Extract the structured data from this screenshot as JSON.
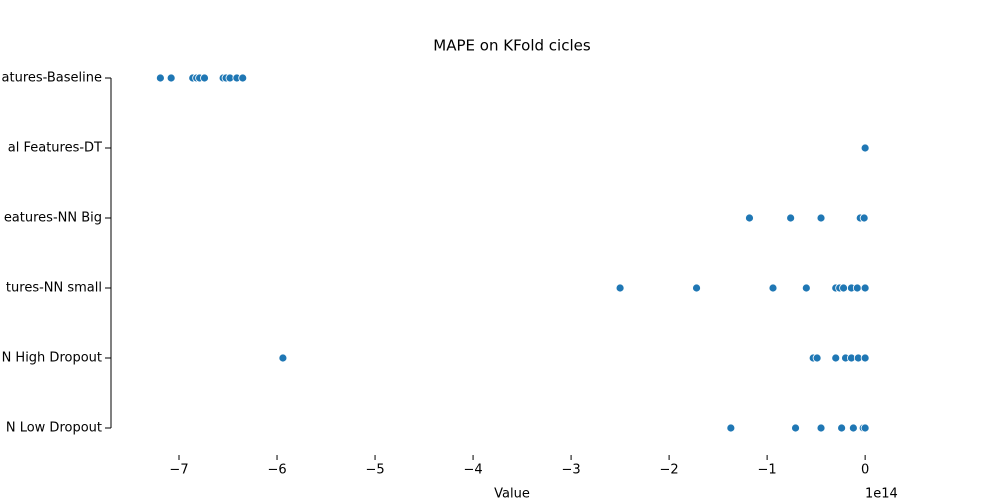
{
  "chart_data": {
    "type": "strip",
    "title": "MAPE on KFold cicles",
    "x_label": "Value",
    "x_offset_label": "1e14",
    "categories": [
      "atures-Baseline",
      "al Features-DT",
      "eatures-NN Big",
      "tures-NN small",
      "N High Dropout",
      "N Low Dropout"
    ],
    "values": [
      [
        -7.19,
        -7.08,
        -6.86,
        -6.82,
        -6.79,
        -6.74,
        -6.55,
        -6.52,
        -6.48,
        -6.41,
        -6.35
      ],
      [
        0
      ],
      [
        -1.18,
        -0.76,
        -0.45,
        -0.05,
        -0.01
      ],
      [
        -2.5,
        -1.72,
        -0.94,
        -0.6,
        -0.3,
        -0.26,
        -0.22,
        -0.14,
        -0.08,
        0
      ],
      [
        -5.94,
        -0.53,
        -0.49,
        -0.3,
        -0.2,
        -0.14,
        -0.07,
        0
      ],
      [
        -1.37,
        -0.71,
        -0.45,
        -0.24,
        -0.12,
        -0.02,
        0
      ]
    ],
    "color": "#1f77b4",
    "xlim": [
      -7.5,
      0.07
    ],
    "xticks": [
      {
        "value": -7,
        "label": "−7"
      },
      {
        "value": -6,
        "label": "−6"
      },
      {
        "value": -5,
        "label": "−5"
      },
      {
        "value": -4,
        "label": "−4"
      },
      {
        "value": -3,
        "label": "−3"
      },
      {
        "value": -2,
        "label": "−2"
      },
      {
        "value": -1,
        "label": "−1"
      },
      0
    ]
  }
}
